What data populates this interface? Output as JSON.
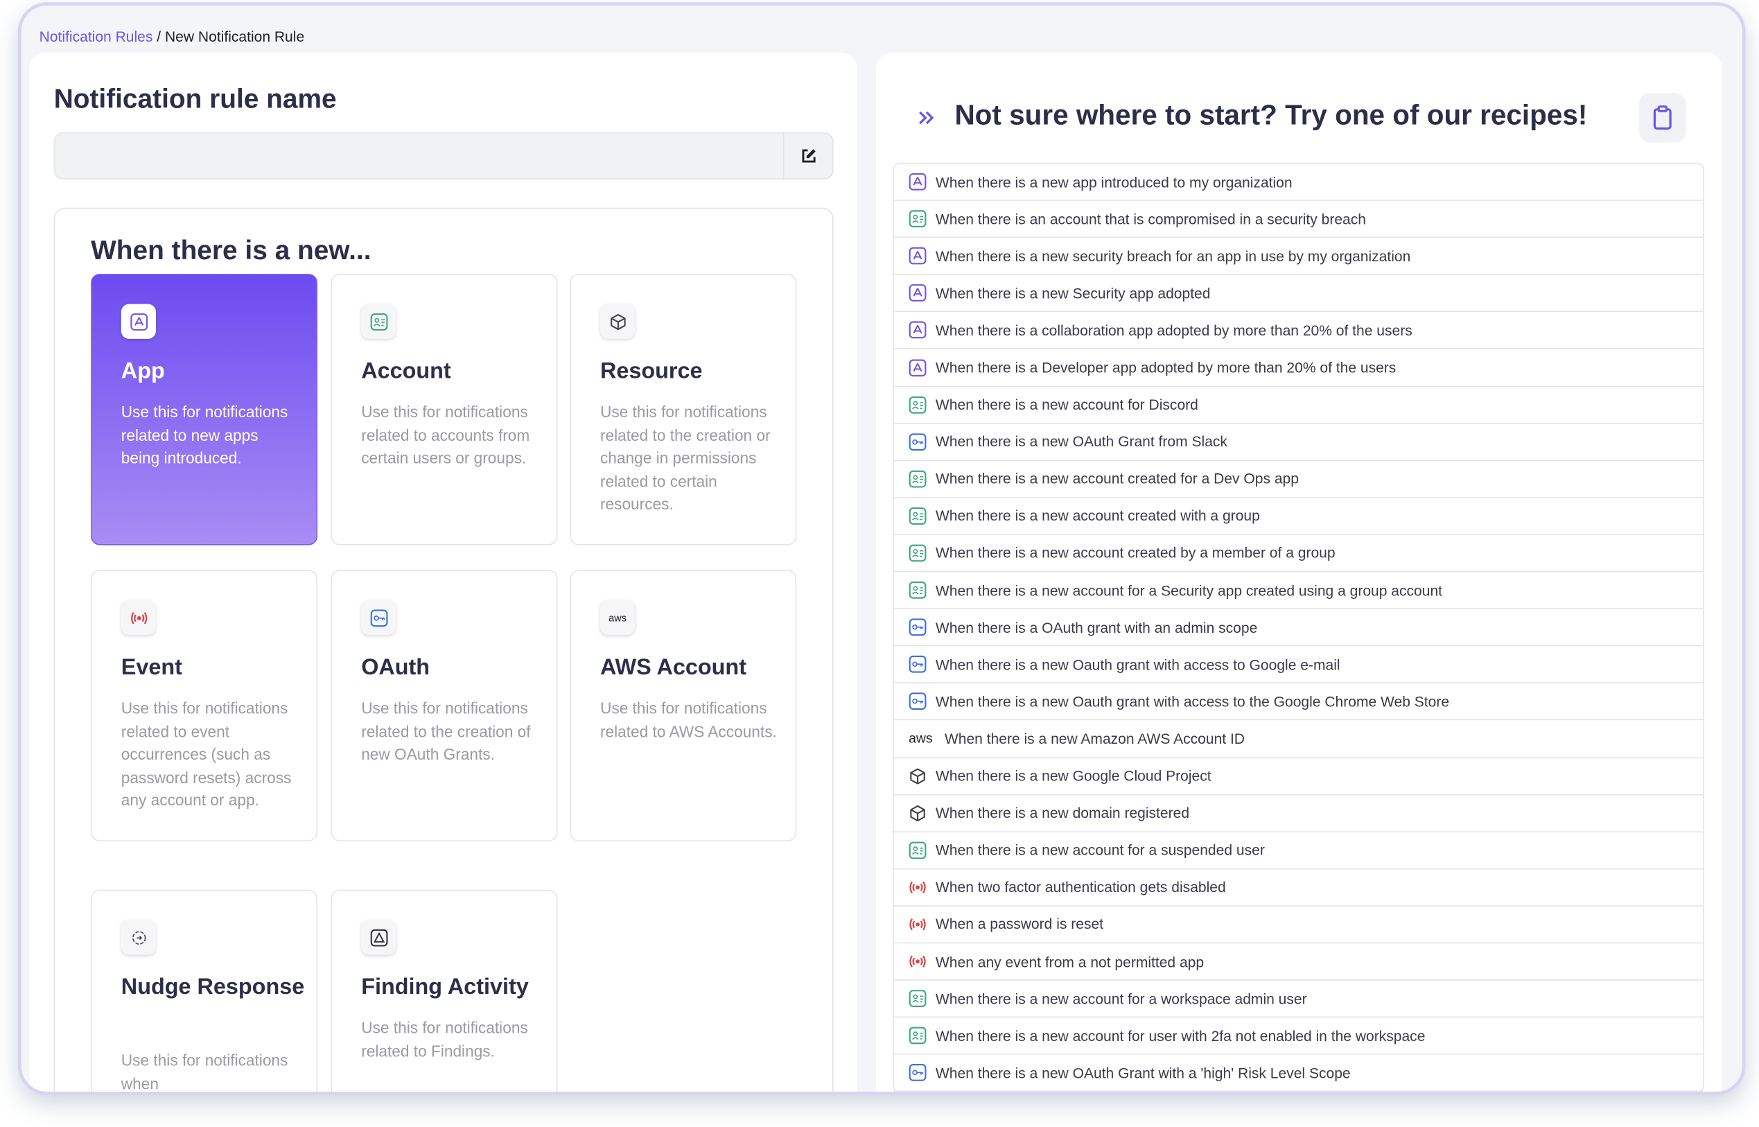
{
  "breadcrumb": {
    "parent": "Notification Rules",
    "separator": "/",
    "current": "New Notification Rule"
  },
  "left": {
    "title": "Notification rule name",
    "section_heading": "When there is a new...",
    "cards": [
      {
        "title": "App",
        "description": "Use this for notifications related to new apps being introduced."
      },
      {
        "title": "Account",
        "description": "Use this for notifications related to accounts from certain users or groups."
      },
      {
        "title": "Resource",
        "description": "Use this for notifications related to the creation or change in permissions related to certain resources."
      },
      {
        "title": "Event",
        "description": "Use this for notifications related to event occurrences (such as password resets) across any account or app."
      },
      {
        "title": "OAuth",
        "description": "Use this for notifications related to the creation of new OAuth Grants."
      },
      {
        "title": "AWS Account",
        "description": "Use this for notifications related to AWS Accounts."
      },
      {
        "title": "Nudge Response",
        "description": "Use this for notifications when"
      },
      {
        "title": "Finding Activity",
        "description": "Use this for notifications related to Findings."
      }
    ]
  },
  "aws_logo_text": "aws",
  "right": {
    "title": "Not sure where to start? Try one of our recipes!",
    "recipes": [
      "When there is a new app introduced to my organization",
      "When there is an account that is compromised in a security breach",
      "When there is a new security breach for an app in use by my organization",
      "When there is a new Security app adopted",
      "When there is a collaboration app adopted by more than 20% of the users",
      "When there is a Developer app adopted by more than 20% of the users",
      "When there is a new account for Discord",
      "When there is a new OAuth Grant from Slack",
      "When there is a new account created for a Dev Ops app",
      "When there is a new account created with a group",
      "When there is a new account created by a member of a group",
      "When there is a new account for a Security app created using a group account",
      "When there is a OAuth grant with an admin scope",
      "When there is a new Oauth grant with access to Google e-mail",
      "When there is a new Oauth grant with access to the Google Chrome Web Store",
      "When there is a new Amazon AWS Account ID",
      "When there is a new Google Cloud Project",
      "When there is a new domain registered",
      "When there is a new account for a suspended user",
      "When two factor authentication gets disabled",
      "When a password is reset",
      "When any event from a not permitted app",
      "When there is a new account for a workspace admin user",
      "When there is a new account for user with 2fa not enabled in the workspace",
      "When there is a new OAuth Grant with a 'high' Risk Level Scope"
    ]
  }
}
